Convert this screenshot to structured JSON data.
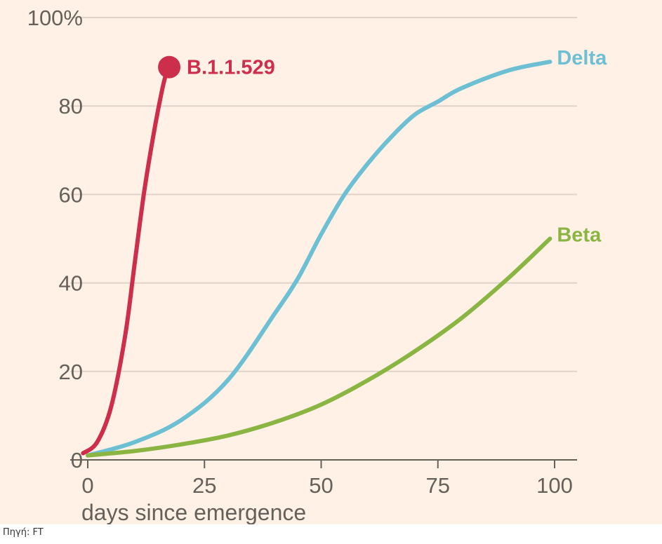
{
  "caption": "Πηγή: FT",
  "chart_data": {
    "type": "line",
    "xlabel": "days since emergence",
    "ylabel": "",
    "xlim": [
      -2,
      104
    ],
    "ylim": [
      0,
      100
    ],
    "x_ticks": [
      0,
      25,
      50,
      75,
      100
    ],
    "x_tick_labels": [
      "0",
      "25",
      "50",
      "75",
      "100"
    ],
    "y_ticks": [
      0,
      20,
      40,
      60,
      80,
      100
    ],
    "y_tick_labels": [
      "0",
      "20",
      "40",
      "60",
      "80",
      "100%"
    ],
    "grid": true,
    "series": [
      {
        "name": "B.1.1.529",
        "color": "#cc2e4b",
        "end_marker": true,
        "x": [
          -1,
          2,
          5,
          8,
          10,
          12,
          14,
          16,
          17
        ],
        "y": [
          1.5,
          4,
          12,
          28,
          44,
          60,
          73,
          84,
          88
        ]
      },
      {
        "name": "Delta",
        "color": "#6dbfd3",
        "end_marker": false,
        "x": [
          0,
          10,
          20,
          30,
          40,
          45,
          50,
          55,
          60,
          65,
          70,
          75,
          80,
          90,
          99
        ],
        "y": [
          1,
          4,
          9,
          18,
          33,
          41,
          51,
          60,
          67,
          73,
          78,
          81,
          84,
          88,
          90
        ]
      },
      {
        "name": "Beta",
        "color": "#8ab543",
        "end_marker": false,
        "x": [
          0,
          10,
          20,
          30,
          40,
          50,
          60,
          70,
          80,
          90,
          99
        ],
        "y": [
          1,
          2,
          3.5,
          5.5,
          8.5,
          12.5,
          18,
          24.5,
          32,
          41,
          50
        ]
      }
    ]
  }
}
